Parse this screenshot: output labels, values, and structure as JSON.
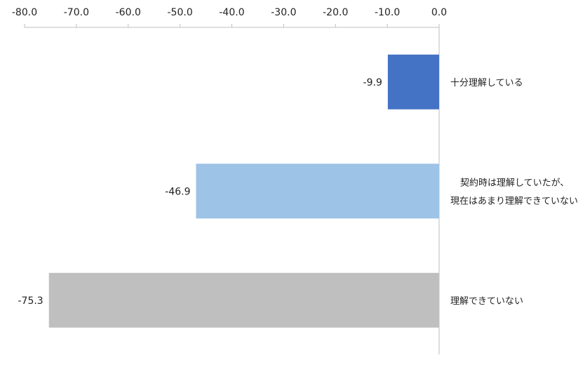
{
  "chart_data": {
    "type": "bar",
    "orientation": "horizontal",
    "categories": [
      "十分理解している",
      "契約時は理解していたが、現在はあまり理解できていない",
      "理解できていない"
    ],
    "category_label_lines": [
      [
        "十分理解している"
      ],
      [
        "契約時は理解していたが、",
        "現在はあまり理解できていない"
      ],
      [
        "理解できていない"
      ]
    ],
    "values": [
      -9.9,
      -46.9,
      -75.3
    ],
    "data_labels": [
      "-9.9",
      "-46.9",
      "-75.3"
    ],
    "colors": [
      "#4472c4",
      "#9dc3e6",
      "#bfbfbf"
    ],
    "xlim": [
      -80,
      0
    ],
    "ticks": [
      -80,
      -70,
      -60,
      -50,
      -40,
      -30,
      -20,
      -10,
      0
    ],
    "tick_labels": [
      "-80.0",
      "-70.0",
      "-60.0",
      "-50.0",
      "-40.0",
      "-30.0",
      "-20.0",
      "-10.0",
      "0.0"
    ],
    "axis_position": "top",
    "grid": false,
    "legend": "none",
    "title": "",
    "xlabel": "",
    "ylabel": ""
  }
}
